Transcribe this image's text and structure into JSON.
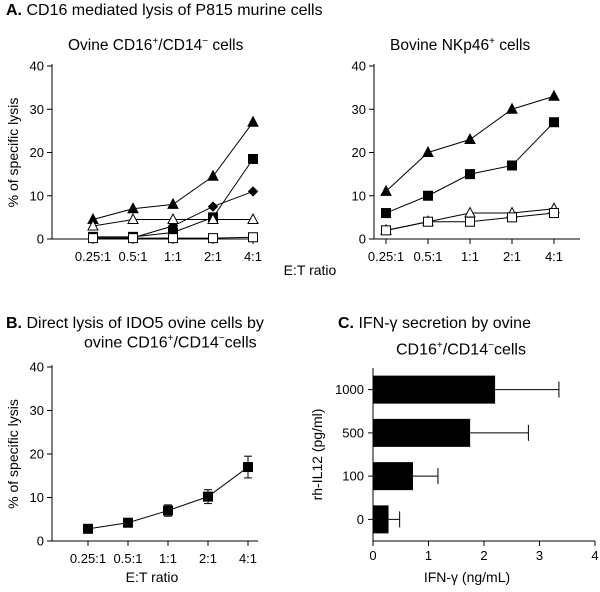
{
  "figure": {
    "panel_a": {
      "letter": "A.",
      "title": "CD16 mediated lysis of P815 murine cells"
    },
    "panel_b": {
      "letter": "B.",
      "title_line1": "Direct lysis of IDO5 ovine cells  by",
      "title_line2_pre": "ovine CD16",
      "title_line2_mid": "/CD14",
      "title_line2_post": "cells"
    },
    "panel_c": {
      "letter": "C.",
      "title_line1": "IFN-γ secretion by ovine",
      "title_line2_pre": "CD16",
      "title_line2_mid": "/CD14",
      "title_line2_post": "cells"
    },
    "shared_xlabel": "E:T ratio"
  },
  "chart_data": [
    {
      "id": "a_left",
      "type": "line",
      "title_pre": "Ovine CD16",
      "title_mid": "/CD14",
      "title_post": " cells",
      "title_sup1": "+",
      "title_sup2": "−",
      "ylabel": "% of specific lysis",
      "xlabel": "E:T ratio",
      "categories": [
        "0.25:1",
        "0.5:1",
        "1:1",
        "2:1",
        "4:1"
      ],
      "ylim": [
        0,
        40
      ],
      "yticks": [
        0,
        10,
        20,
        30,
        40
      ],
      "series": [
        {
          "name": "filled triangle",
          "marker": "triangle-filled",
          "values": [
            4.5,
            7,
            8,
            14.5,
            27
          ]
        },
        {
          "name": "filled square",
          "marker": "square-filled",
          "values": [
            0.5,
            0.5,
            1.5,
            5,
            18.5
          ]
        },
        {
          "name": "filled diamond",
          "marker": "diamond-filled",
          "values": [
            0.3,
            0.3,
            3,
            7.5,
            11
          ]
        },
        {
          "name": "open triangle",
          "marker": "triangle-open",
          "values": [
            3,
            4.5,
            4.5,
            4.5,
            4.5
          ]
        },
        {
          "name": "open square",
          "marker": "square-open",
          "values": [
            0.2,
            0.2,
            0.2,
            0.2,
            0.4
          ]
        }
      ]
    },
    {
      "id": "a_right",
      "type": "line",
      "title_pre": "Bovine NKp46",
      "title_post": " cells",
      "title_sup1": "+",
      "categories": [
        "0.25:1",
        "0.5:1",
        "1:1",
        "2:1",
        "4:1"
      ],
      "ylim": [
        0,
        40
      ],
      "yticks": [
        0,
        10,
        20,
        30,
        40
      ],
      "series": [
        {
          "name": "filled triangle",
          "marker": "triangle-filled",
          "values": [
            11,
            20,
            23,
            30,
            33
          ]
        },
        {
          "name": "filled square",
          "marker": "square-filled",
          "values": [
            6,
            10,
            15,
            17,
            27
          ]
        },
        {
          "name": "open triangle",
          "marker": "triangle-open",
          "values": [
            2,
            4,
            6,
            6,
            7
          ]
        },
        {
          "name": "open square",
          "marker": "square-open",
          "values": [
            2,
            4,
            4,
            5,
            6
          ]
        }
      ]
    },
    {
      "id": "b",
      "type": "line",
      "ylabel": "% of specific lysis",
      "xlabel": "E:T ratio",
      "categories": [
        "0.25:1",
        "0.5:1",
        "1:1",
        "2:1",
        "4:1"
      ],
      "ylim": [
        0,
        40
      ],
      "yticks": [
        0,
        10,
        20,
        30,
        40
      ],
      "series": [
        {
          "name": "IDO5 lysis",
          "marker": "square-filled",
          "values": [
            2.8,
            4.2,
            7,
            10.2,
            17
          ],
          "errors": [
            0.5,
            0.7,
            1.3,
            1.6,
            2.5
          ]
        }
      ]
    },
    {
      "id": "c",
      "type": "bar",
      "orientation": "horizontal",
      "ylabel": "rh-IL12 (pg/ml)",
      "xlabel": "IFN-γ (ng/mL)",
      "categories": [
        "1000",
        "500",
        "100",
        "0"
      ],
      "values": [
        2.2,
        1.75,
        0.72,
        0.28
      ],
      "errors": [
        1.15,
        1.05,
        0.45,
        0.2
      ],
      "xlim": [
        0,
        4
      ],
      "xticks": [
        0,
        1,
        2,
        3,
        4
      ]
    }
  ]
}
